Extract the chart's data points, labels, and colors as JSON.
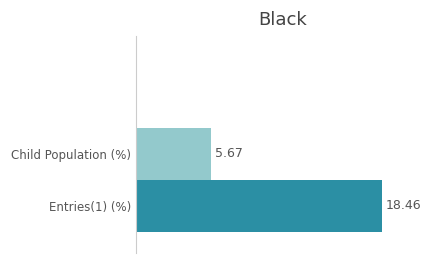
{
  "title": "Black",
  "categories": [
    "Entries(1) (%)",
    "Child Population (%)"
  ],
  "values": [
    18.46,
    5.67
  ],
  "bar_colors": [
    "#2b8fa4",
    "#93c9cc"
  ],
  "value_labels": [
    "18.46",
    "5.67"
  ],
  "xlim": [
    0,
    22
  ],
  "background_color": "#ffffff",
  "title_fontsize": 13,
  "label_fontsize": 8.5,
  "value_fontsize": 9,
  "bar_height": 0.55,
  "bar_positions": [
    1.0,
    1.55
  ]
}
